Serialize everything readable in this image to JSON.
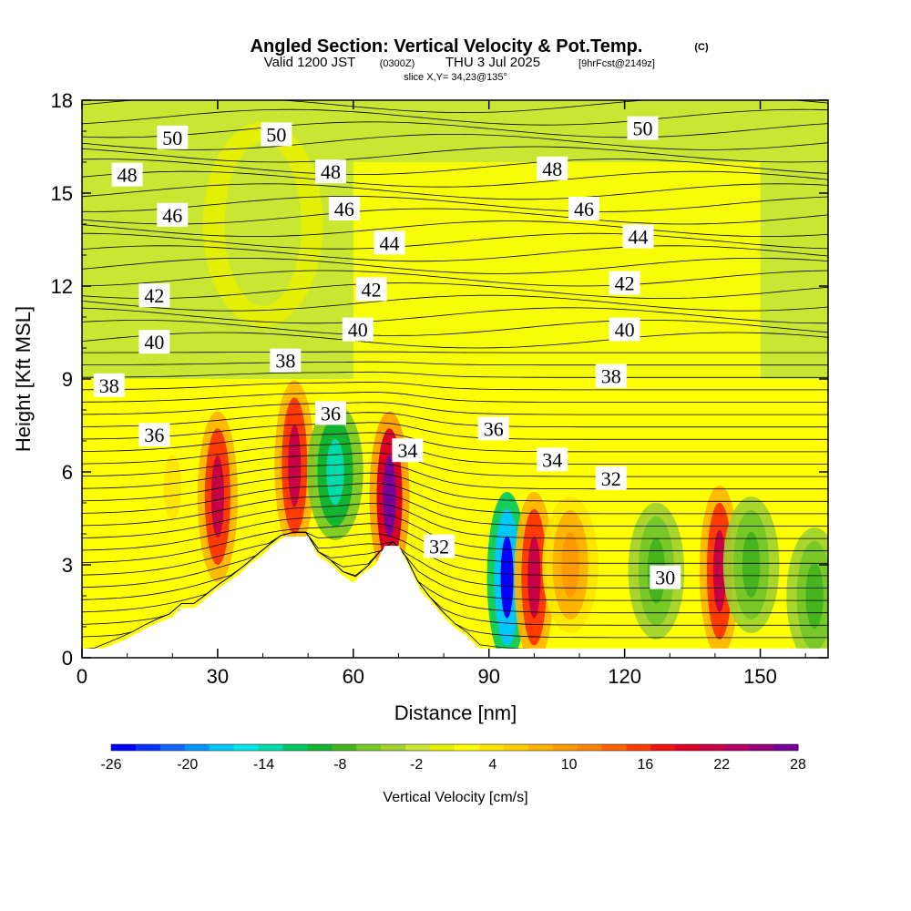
{
  "title": {
    "main": "Angled Section: Vertical Velocity & Pot.Temp.",
    "main_suffix": "(C)",
    "valid_prefix": "Valid 1200 JST",
    "valid_utc": "(0300Z)",
    "valid_date": "THU 3 Jul 2025",
    "forecast": "[9hrFcst@2149z]",
    "slice": "slice X,Y= 34,23@135°"
  },
  "chart_data": {
    "type": "heatmap",
    "xlabel": "Distance [nm]",
    "ylabel": "Height [Kft MSL]",
    "xlim": [
      0,
      165
    ],
    "ylim": [
      0,
      18
    ],
    "x_ticks": [
      "0",
      "30",
      "60",
      "90",
      "120",
      "150"
    ],
    "x_tick_values": [
      0,
      30,
      60,
      90,
      120,
      150
    ],
    "y_ticks": [
      "0",
      "3",
      "6",
      "9",
      "12",
      "15",
      "18"
    ],
    "y_tick_values": [
      0,
      3,
      6,
      9,
      12,
      15,
      18
    ],
    "colorbar": {
      "label": "Vertical Velocity [cm/s]",
      "tick_labels": [
        "-26",
        "-20",
        "-14",
        "-8",
        "-2",
        "4",
        "10",
        "16",
        "22",
        "28"
      ],
      "tick_values": [
        -26,
        -20,
        -14,
        -8,
        -2,
        4,
        10,
        16,
        22,
        28
      ],
      "colors": [
        "#0000ff",
        "#0a32ff",
        "#1464ff",
        "#0096ff",
        "#00c8ff",
        "#00e6e6",
        "#00dcaa",
        "#00c864",
        "#14b432",
        "#46b41e",
        "#78c828",
        "#a0d232",
        "#c8e632",
        "#e6f000",
        "#ffff00",
        "#ffe600",
        "#ffcd00",
        "#ffb400",
        "#ff9b00",
        "#ff8200",
        "#ff6400",
        "#ff3c00",
        "#f01414",
        "#dc0028",
        "#c80046",
        "#b40064",
        "#960078",
        "#780096"
      ]
    },
    "terrain_profile": {
      "distance": [
        0,
        10,
        15,
        20,
        22,
        25,
        30,
        32,
        35,
        37,
        40,
        42,
        45,
        47,
        50,
        52,
        55,
        57,
        60,
        62,
        65,
        67,
        70,
        72,
        75,
        77,
        80,
        82,
        85,
        87,
        90
      ],
      "height": [
        0,
        0.6,
        1.0,
        1.3,
        1.6,
        1.6,
        2.2,
        2.4,
        2.7,
        3.0,
        3.3,
        3.6,
        3.9,
        3.9,
        3.9,
        3.3,
        3.0,
        2.7,
        2.4,
        2.7,
        3.0,
        3.6,
        3.6,
        3.0,
        2.1,
        1.8,
        1.3,
        1.0,
        0.7,
        0.4,
        0
      ]
    },
    "velocity_cells": [
      {
        "x": 30,
        "y": 5.2,
        "value": 22
      },
      {
        "x": 47,
        "y": 6.2,
        "value": 22
      },
      {
        "x": 56,
        "y": 6.0,
        "value": -14
      },
      {
        "x": 68,
        "y": 5.2,
        "value": 28
      },
      {
        "x": 94,
        "y": 2.6,
        "value": -26
      },
      {
        "x": 100,
        "y": 2.6,
        "value": 22
      },
      {
        "x": 108,
        "y": 3.0,
        "value": 10
      },
      {
        "x": 127,
        "y": 2.8,
        "value": -8
      },
      {
        "x": 141,
        "y": 2.8,
        "value": 22
      },
      {
        "x": 148,
        "y": 3.0,
        "value": -8
      },
      {
        "x": 162,
        "y": 2.0,
        "value": -8
      },
      {
        "x": 40,
        "y": 14.0,
        "value": -2
      },
      {
        "x": 20,
        "y": 5.5,
        "value": 4
      }
    ],
    "isentrope_labels": [
      {
        "text": "50",
        "x": 20,
        "y": 16.8
      },
      {
        "text": "50",
        "x": 43,
        "y": 16.9
      },
      {
        "text": "50",
        "x": 124,
        "y": 17.1
      },
      {
        "text": "48",
        "x": 10,
        "y": 15.6
      },
      {
        "text": "48",
        "x": 55,
        "y": 15.7
      },
      {
        "text": "48",
        "x": 104,
        "y": 15.8
      },
      {
        "text": "46",
        "x": 20,
        "y": 14.3
      },
      {
        "text": "46",
        "x": 58,
        "y": 14.5
      },
      {
        "text": "46",
        "x": 111,
        "y": 14.5
      },
      {
        "text": "44",
        "x": 68,
        "y": 13.4
      },
      {
        "text": "44",
        "x": 123,
        "y": 13.6
      },
      {
        "text": "42",
        "x": 16,
        "y": 11.7
      },
      {
        "text": "42",
        "x": 64,
        "y": 11.9
      },
      {
        "text": "42",
        "x": 120,
        "y": 12.1
      },
      {
        "text": "40",
        "x": 16,
        "y": 10.2
      },
      {
        "text": "40",
        "x": 61,
        "y": 10.6
      },
      {
        "text": "40",
        "x": 120,
        "y": 10.6
      },
      {
        "text": "38",
        "x": 6,
        "y": 8.8
      },
      {
        "text": "38",
        "x": 45,
        "y": 9.6
      },
      {
        "text": "38",
        "x": 117,
        "y": 9.1
      },
      {
        "text": "36",
        "x": 16,
        "y": 7.2
      },
      {
        "text": "36",
        "x": 55,
        "y": 7.9
      },
      {
        "text": "36",
        "x": 91,
        "y": 7.4
      },
      {
        "text": "34",
        "x": 72,
        "y": 6.7
      },
      {
        "text": "34",
        "x": 104,
        "y": 6.4
      },
      {
        "text": "32",
        "x": 79,
        "y": 3.6
      },
      {
        "text": "32",
        "x": 117,
        "y": 5.8
      },
      {
        "text": "30",
        "x": 129,
        "y": 2.6
      }
    ]
  }
}
